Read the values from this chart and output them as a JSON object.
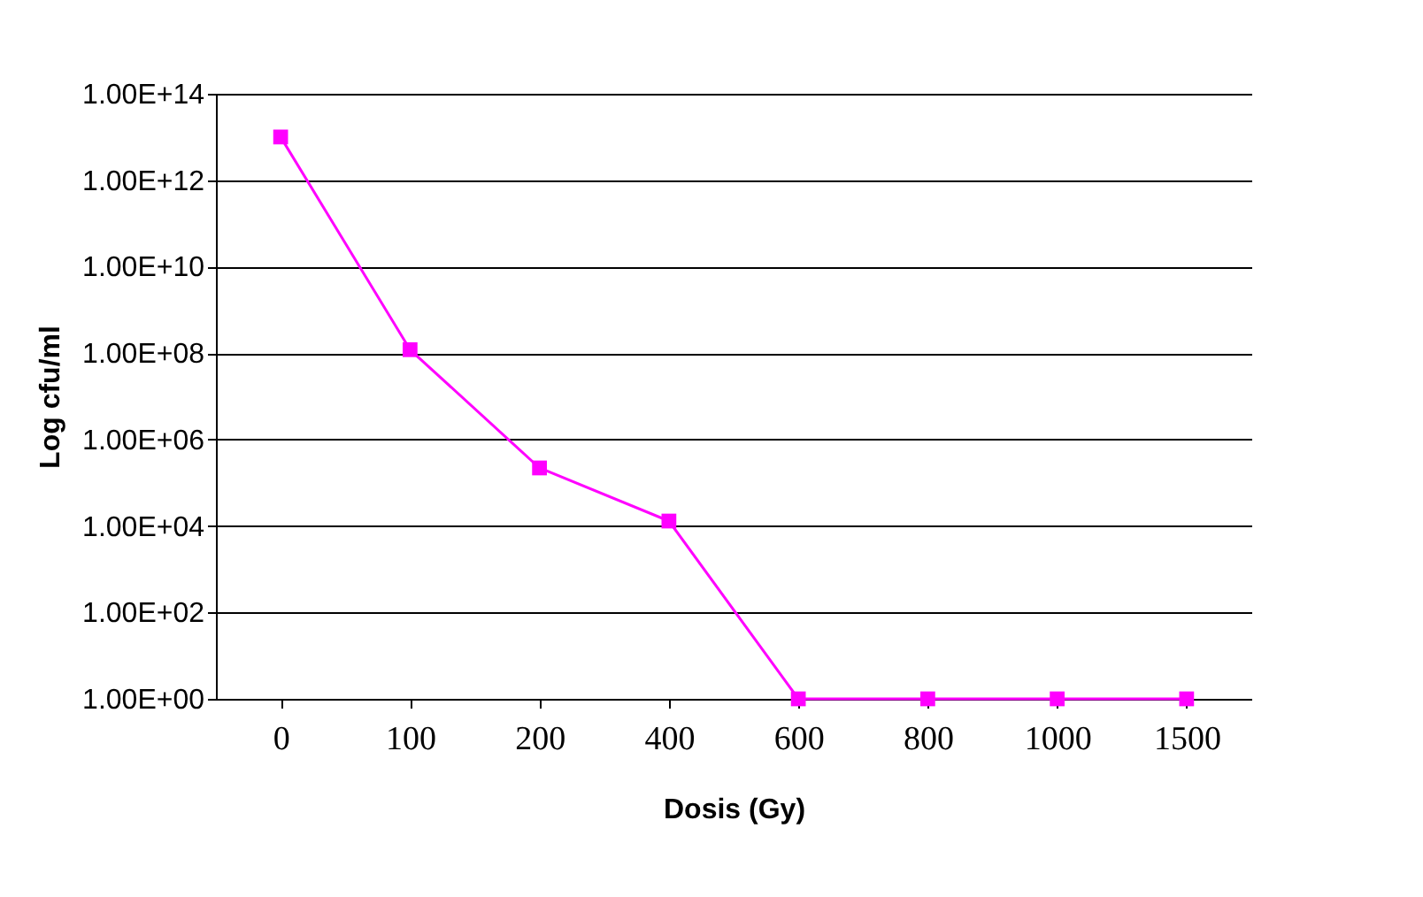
{
  "chart_data": {
    "type": "line",
    "xlabel": "Dosis (Gy)",
    "ylabel": "Log cfu/ml",
    "categories": [
      "0",
      "100",
      "200",
      "400",
      "600",
      "800",
      "1000",
      "1500"
    ],
    "series": [
      {
        "color": "#ff00ff",
        "values": [
          10000000000000.0,
          120000000.0,
          220000.0,
          13000.0,
          1,
          1,
          1,
          1
        ]
      }
    ],
    "log": "y",
    "ylim": [
      1,
      100000000000000.0
    ],
    "yticks": [
      {
        "value": 1,
        "label": "1.00E+00"
      },
      {
        "value": 100,
        "label": "1.00E+02"
      },
      {
        "value": 10000,
        "label": "1.00E+04"
      },
      {
        "value": 1000000,
        "label": "1.00E+06"
      },
      {
        "value": 100000000,
        "label": "1.00E+08"
      },
      {
        "value": 10000000000,
        "label": "1.00E+10"
      },
      {
        "value": 1000000000000,
        "label": "1.00E+12"
      },
      {
        "value": 100000000000000,
        "label": "1.00E+14"
      }
    ],
    "grid": "y",
    "marker": "square",
    "line_style": "solid"
  }
}
